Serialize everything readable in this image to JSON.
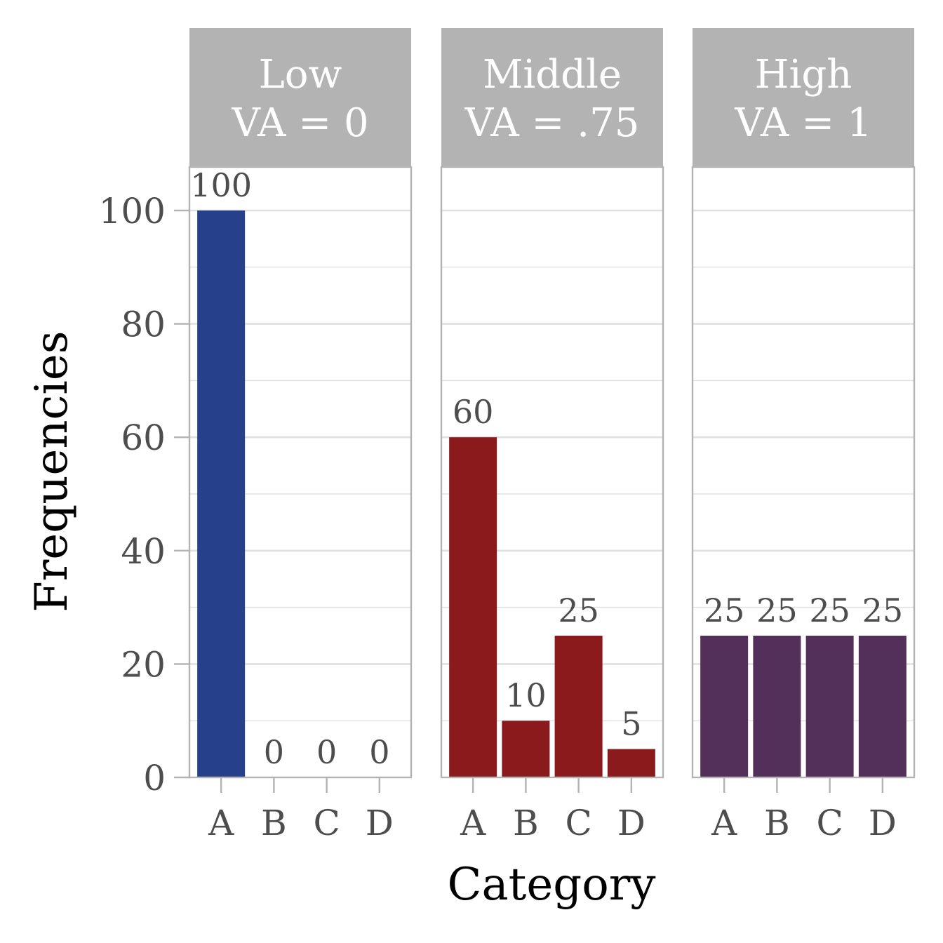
{
  "chart_data": {
    "type": "bar",
    "xlabel": "Category",
    "ylabel": "Frequencies",
    "ylim": [
      0,
      100
    ],
    "yticks": [
      0,
      20,
      40,
      60,
      80,
      100
    ],
    "grid": true,
    "categories": [
      "A",
      "B",
      "C",
      "D"
    ],
    "panels": [
      {
        "strip_line1": "Low",
        "strip_line2": "VA = 0",
        "color": "#26408b",
        "values": [
          100,
          0,
          0,
          0
        ]
      },
      {
        "strip_line1": "Middle",
        "strip_line2": "VA = .75",
        "color": "#8b1a1c",
        "values": [
          60,
          10,
          25,
          5
        ]
      },
      {
        "strip_line1": "High",
        "strip_line2": "VA = 1",
        "color": "#52305a",
        "values": [
          25,
          25,
          25,
          25
        ]
      }
    ]
  },
  "colors": {
    "strip_background": "#b3b3b3",
    "panel_border": "#b3b3b3",
    "gridline": "#e0e0e0",
    "tick_text": "#4d4d4d"
  }
}
